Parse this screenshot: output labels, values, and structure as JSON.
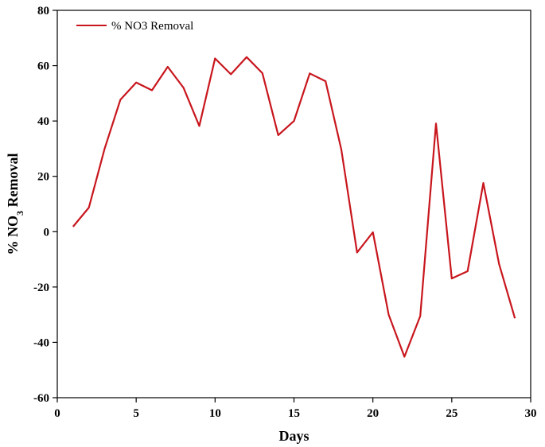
{
  "chart_data": {
    "type": "line",
    "title": "",
    "xlabel": "Days",
    "ylabel_parts": {
      "prefix": "% NO",
      "subscript": "3",
      "suffix": " Removal"
    },
    "xlim": [
      0,
      30
    ],
    "ylim": [
      -60,
      80
    ],
    "x_ticks": [
      0,
      5,
      10,
      15,
      20,
      25,
      30
    ],
    "y_ticks": [
      -60,
      -40,
      -20,
      0,
      20,
      40,
      60,
      80
    ],
    "grid": false,
    "legend_position": "top-left",
    "series": [
      {
        "name": "% NO3 Removal",
        "color": "#c8161d",
        "x": [
          1,
          2,
          3,
          4,
          5,
          6,
          7,
          8,
          9,
          10,
          11,
          12,
          13,
          14,
          15,
          16,
          17,
          18,
          19,
          20,
          21,
          22,
          23,
          24,
          25,
          26,
          27,
          28,
          29
        ],
        "y": [
          1.8,
          8.7,
          30,
          47.7,
          53.9,
          51.1,
          59.6,
          52,
          38.2,
          62.6,
          56.9,
          63.1,
          57.3,
          34.9,
          40,
          57.2,
          54.4,
          29.7,
          -7.5,
          -0.2,
          -30,
          -45.2,
          -30.5,
          39.1,
          -16.9,
          -14.3,
          17.6,
          -11.7,
          -31.3
        ]
      }
    ]
  }
}
